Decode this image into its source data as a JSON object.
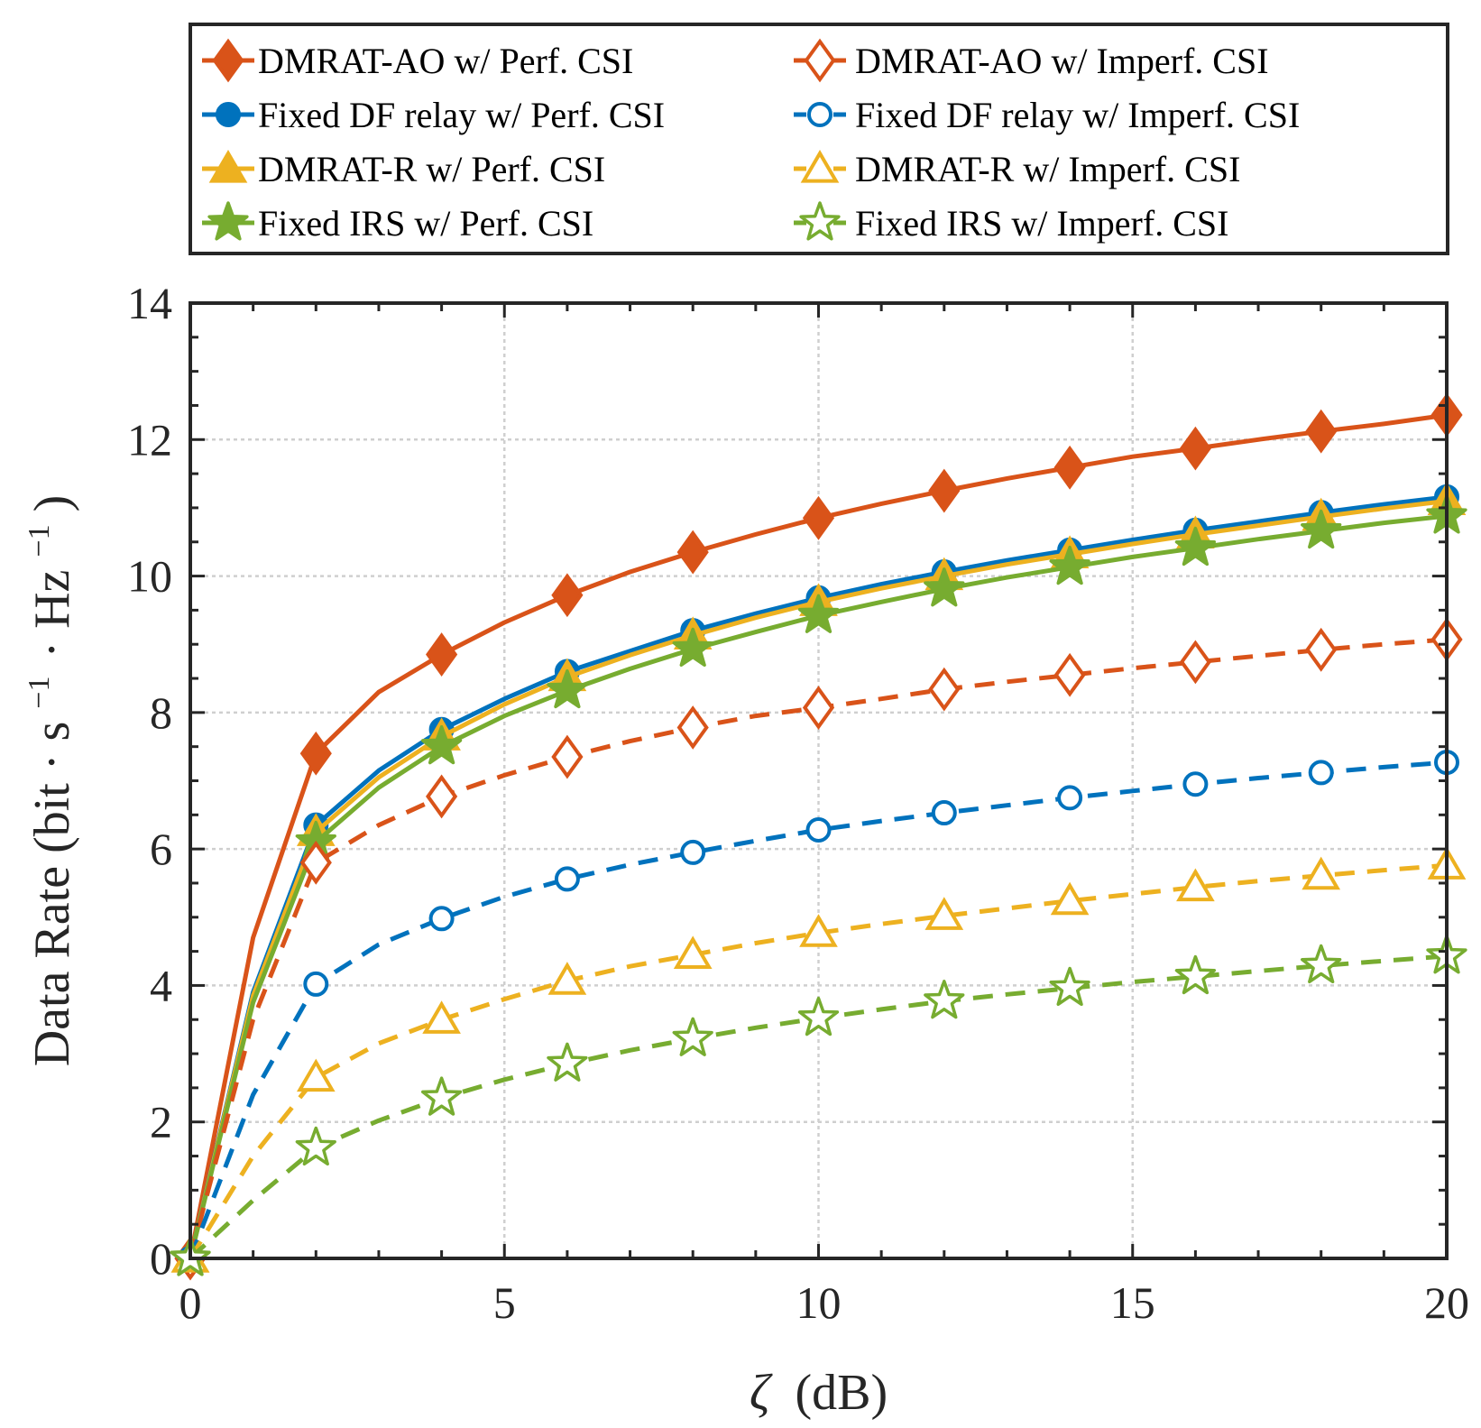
{
  "chart_data": {
    "type": "line",
    "xlabel_symbol": "ζ",
    "xlabel_unit": "(dB)",
    "ylabel": "Data Rate (bit · s",
    "ylabel_sup1": "−1",
    "ylabel_mid": "· Hz",
    "ylabel_sup2": "−1",
    "ylabel_end": ")",
    "xlim": [
      0,
      20
    ],
    "ylim": [
      0,
      14
    ],
    "xticks": [
      0,
      5,
      10,
      15,
      20
    ],
    "yticks": [
      0,
      2,
      4,
      6,
      8,
      10,
      12,
      14
    ],
    "grid": true,
    "legend_position": "top",
    "series": [
      {
        "name": "DMRAT-AO w/ Perf. CSI",
        "color": "#D95319",
        "style": "solid",
        "marker": "diamond",
        "filled": true,
        "x": [
          0,
          1,
          2,
          3,
          4,
          5,
          6,
          7,
          8,
          9,
          10,
          11,
          12,
          13,
          14,
          15,
          16,
          17,
          18,
          19,
          20
        ],
        "y": [
          0,
          4.7,
          7.4,
          8.3,
          8.85,
          9.32,
          9.72,
          10.06,
          10.35,
          10.61,
          10.85,
          11.06,
          11.25,
          11.43,
          11.59,
          11.75,
          11.87,
          12.0,
          12.12,
          12.23,
          12.36
        ],
        "marker_x": [
          0,
          2,
          4,
          6,
          8,
          10,
          12,
          14,
          16,
          18,
          20
        ]
      },
      {
        "name": "Fixed DF relay w/ Perf. CSI",
        "color": "#0072BD",
        "style": "solid",
        "marker": "circle",
        "filled": true,
        "x": [
          0,
          1,
          2,
          3,
          4,
          5,
          6,
          7,
          8,
          9,
          10,
          11,
          12,
          13,
          14,
          15,
          16,
          17,
          18,
          19,
          20
        ],
        "y": [
          0,
          3.9,
          6.35,
          7.15,
          7.75,
          8.2,
          8.6,
          8.9,
          9.2,
          9.45,
          9.68,
          9.88,
          10.06,
          10.23,
          10.38,
          10.53,
          10.67,
          10.8,
          10.93,
          11.05,
          11.16
        ],
        "marker_x": [
          0,
          2,
          4,
          6,
          8,
          10,
          12,
          14,
          16,
          18,
          20
        ]
      },
      {
        "name": "DMRAT-R w/ Perf. CSI",
        "color": "#EDB120",
        "style": "solid",
        "marker": "triangle",
        "filled": true,
        "x": [
          0,
          1,
          2,
          3,
          4,
          5,
          6,
          7,
          8,
          9,
          10,
          11,
          12,
          13,
          14,
          15,
          16,
          17,
          18,
          19,
          20
        ],
        "y": [
          0,
          3.85,
          6.25,
          7.05,
          7.65,
          8.12,
          8.52,
          8.84,
          9.13,
          9.39,
          9.62,
          9.82,
          10.0,
          10.17,
          10.32,
          10.47,
          10.61,
          10.74,
          10.87,
          10.99,
          11.1
        ],
        "marker_x": [
          0,
          2,
          4,
          6,
          8,
          10,
          12,
          14,
          16,
          18,
          20
        ]
      },
      {
        "name": "Fixed IRS w/ Perf. CSI",
        "color": "#77AC30",
        "style": "solid",
        "marker": "star",
        "filled": true,
        "x": [
          0,
          1,
          2,
          3,
          4,
          5,
          6,
          7,
          8,
          9,
          10,
          11,
          12,
          13,
          14,
          15,
          16,
          17,
          18,
          19,
          20
        ],
        "y": [
          0,
          3.75,
          6.1,
          6.9,
          7.5,
          7.95,
          8.32,
          8.64,
          8.93,
          9.18,
          9.42,
          9.62,
          9.81,
          9.98,
          10.13,
          10.28,
          10.41,
          10.54,
          10.66,
          10.78,
          10.88
        ],
        "marker_x": [
          0,
          2,
          4,
          6,
          8,
          10,
          12,
          14,
          16,
          18,
          20
        ]
      },
      {
        "name": "DMRAT-AO w/ Imperf. CSI",
        "color": "#D95319",
        "style": "dashed",
        "marker": "diamond",
        "filled": false,
        "x": [
          0,
          1,
          2,
          3,
          4,
          5,
          6,
          7,
          8,
          9,
          10,
          11,
          12,
          13,
          14,
          15,
          16,
          17,
          18,
          19,
          20
        ],
        "y": [
          0,
          3.5,
          5.8,
          6.35,
          6.77,
          7.08,
          7.35,
          7.58,
          7.78,
          7.95,
          8.07,
          8.2,
          8.34,
          8.45,
          8.55,
          8.65,
          8.74,
          8.83,
          8.92,
          9.0,
          9.07
        ],
        "marker_x": [
          0,
          2,
          4,
          6,
          8,
          10,
          12,
          14,
          16,
          18,
          20
        ]
      },
      {
        "name": "Fixed DF relay w/ Imperf. CSI",
        "color": "#0072BD",
        "style": "dashed",
        "marker": "circle",
        "filled": false,
        "x": [
          0,
          1,
          2,
          3,
          4,
          5,
          6,
          7,
          8,
          9,
          10,
          11,
          12,
          13,
          14,
          15,
          16,
          17,
          18,
          19,
          20
        ],
        "y": [
          0,
          2.4,
          4.02,
          4.6,
          4.98,
          5.3,
          5.56,
          5.77,
          5.95,
          6.12,
          6.28,
          6.41,
          6.53,
          6.64,
          6.75,
          6.85,
          6.95,
          7.04,
          7.12,
          7.2,
          7.27
        ],
        "marker_x": [
          0,
          2,
          4,
          6,
          8,
          10,
          12,
          14,
          16,
          18,
          20
        ]
      },
      {
        "name": "DMRAT-R w/ Imperf. CSI",
        "color": "#EDB120",
        "style": "dashed",
        "marker": "triangle",
        "filled": false,
        "x": [
          0,
          1,
          2,
          3,
          4,
          5,
          6,
          7,
          8,
          9,
          10,
          11,
          12,
          13,
          14,
          15,
          16,
          17,
          18,
          19,
          20
        ],
        "y": [
          0,
          1.5,
          2.65,
          3.15,
          3.5,
          3.8,
          4.07,
          4.28,
          4.45,
          4.62,
          4.77,
          4.9,
          5.02,
          5.13,
          5.24,
          5.34,
          5.44,
          5.53,
          5.61,
          5.69,
          5.76
        ],
        "marker_x": [
          0,
          2,
          4,
          6,
          8,
          10,
          12,
          14,
          16,
          18,
          20
        ]
      },
      {
        "name": "Fixed IRS w/ Imperf. CSI",
        "color": "#77AC30",
        "style": "dashed",
        "marker": "star",
        "filled": false,
        "x": [
          0,
          1,
          2,
          3,
          4,
          5,
          6,
          7,
          8,
          9,
          10,
          11,
          12,
          13,
          14,
          15,
          16,
          17,
          18,
          19,
          20
        ],
        "y": [
          0,
          0.85,
          1.62,
          2.02,
          2.35,
          2.62,
          2.85,
          3.05,
          3.22,
          3.38,
          3.52,
          3.65,
          3.77,
          3.87,
          3.96,
          4.05,
          4.13,
          4.21,
          4.29,
          4.36,
          4.43
        ],
        "marker_x": [
          0,
          2,
          4,
          6,
          8,
          10,
          12,
          14,
          16,
          18,
          20
        ]
      }
    ]
  }
}
